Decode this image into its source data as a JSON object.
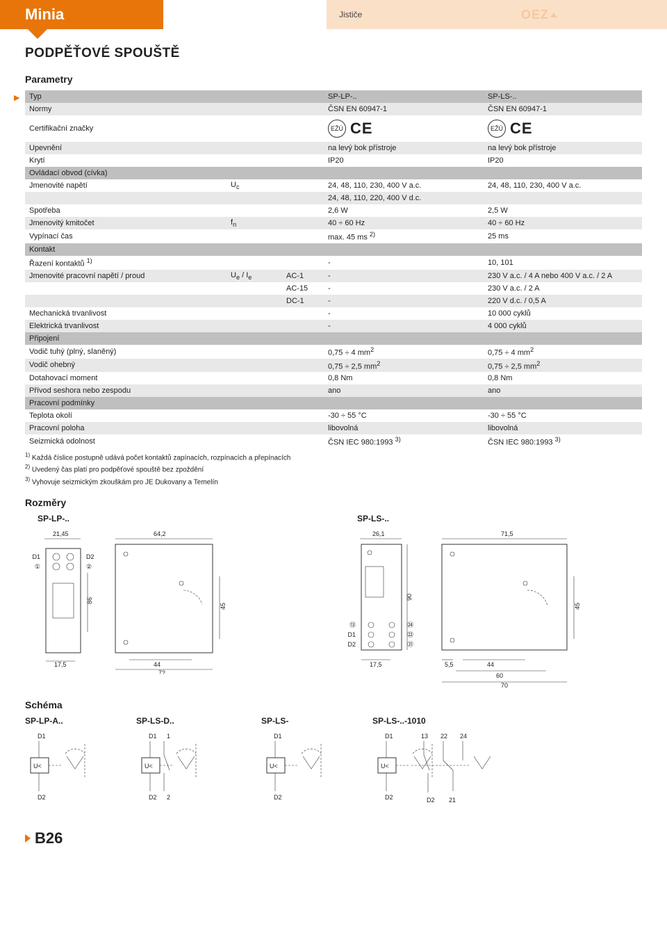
{
  "header": {
    "category": "Minia",
    "subcategory": "Jističe",
    "brand": "OEZ"
  },
  "title": "PODPĚŤOVÉ SPOUŠTĚ",
  "section_params": "Parametry",
  "section_dims": "Rozměry",
  "section_schema": "Schéma",
  "page_number": "B26",
  "table": {
    "rows": [
      {
        "style": "dark",
        "c1": "Typ",
        "c2": "",
        "c3": "",
        "c4": "SP-LP-..",
        "c5": "SP-LS-.."
      },
      {
        "style": "light",
        "c1": "Normy",
        "c2": "",
        "c3": "",
        "c4": "ČSN EN 60947-1",
        "c5": "ČSN EN 60947-1"
      },
      {
        "style": "white",
        "c1": "Certifikační značky",
        "c2": "",
        "c3": "",
        "c4": "__CE__",
        "c5": "__CE__",
        "class": "cert"
      },
      {
        "style": "light",
        "c1": "Upevnění",
        "c2": "",
        "c3": "",
        "c4": "na levý bok přístroje",
        "c5": "na levý bok přístroje"
      },
      {
        "style": "white",
        "c1": "Krytí",
        "c2": "",
        "c3": "",
        "c4": "IP20",
        "c5": "IP20"
      },
      {
        "style": "dark",
        "c1": "Ovládací obvod (cívka)",
        "c2": "",
        "c3": "",
        "c4": "",
        "c5": ""
      },
      {
        "style": "white",
        "c1": "Jmenovité napětí",
        "c2": "Uc",
        "c3": "",
        "c4": "24, 48, 110, 230, 400 V a.c.",
        "c5": "24, 48, 110, 230, 400 V a.c."
      },
      {
        "style": "light",
        "c1": "",
        "c2": "",
        "c3": "",
        "c4": "24, 48, 110, 220, 400 V d.c.",
        "c5": ""
      },
      {
        "style": "white",
        "c1": "Spotřeba",
        "c2": "",
        "c3": "",
        "c4": "2,6 W",
        "c5": "2,5 W"
      },
      {
        "style": "light",
        "c1": "Jmenovitý kmitočet",
        "c2": "fn",
        "c3": "",
        "c4": "40 ÷ 60 Hz",
        "c5": "40 ÷ 60 Hz"
      },
      {
        "style": "white",
        "c1": "Vypínací čas",
        "c2": "",
        "c3": "",
        "c4": "max. 45 ms  2)",
        "c5": "25 ms"
      },
      {
        "style": "dark",
        "c1": "Kontakt",
        "c2": "",
        "c3": "",
        "c4": "",
        "c5": ""
      },
      {
        "style": "white",
        "c1": "Řazení kontaktů 1)",
        "c2": "",
        "c3": "",
        "c4": "-",
        "c5": "10, 101"
      },
      {
        "style": "light",
        "c1": "Jmenovité pracovní napětí / proud",
        "c2": "Ue / Ie",
        "c3": "AC-1",
        "c4": "-",
        "c5": "230 V a.c. / 4 A nebo 400 V a.c. / 2 A"
      },
      {
        "style": "white",
        "c1": "",
        "c2": "",
        "c3": "AC-15",
        "c4": "-",
        "c5": "230 V a.c. / 2 A"
      },
      {
        "style": "light",
        "c1": "",
        "c2": "",
        "c3": "DC-1",
        "c4": "-",
        "c5": "220 V d.c. / 0,5 A"
      },
      {
        "style": "white",
        "c1": "Mechanická trvanlivost",
        "c2": "",
        "c3": "",
        "c4": "-",
        "c5": "10 000 cyklů"
      },
      {
        "style": "light",
        "c1": "Elektrická trvanlivost",
        "c2": "",
        "c3": "",
        "c4": "-",
        "c5": "4 000 cyklů"
      },
      {
        "style": "dark",
        "c1": "Připojení",
        "c2": "",
        "c3": "",
        "c4": "",
        "c5": ""
      },
      {
        "style": "white",
        "c1": "Vodič tuhý (plný, slaněný)",
        "c2": "",
        "c3": "",
        "c4": "0,75 ÷ 4 mm2",
        "c5": "0,75 ÷ 4 mm2"
      },
      {
        "style": "light",
        "c1": "Vodič ohebný",
        "c2": "",
        "c3": "",
        "c4": "0,75 ÷ 2,5 mm2",
        "c5": "0,75 ÷ 2,5 mm2"
      },
      {
        "style": "white",
        "c1": "Dotahovací moment",
        "c2": "",
        "c3": "",
        "c4": "0,8 Nm",
        "c5": "0,8 Nm"
      },
      {
        "style": "light",
        "c1": "Přívod seshora nebo zespodu",
        "c2": "",
        "c3": "",
        "c4": "ano",
        "c5": "ano"
      },
      {
        "style": "dark",
        "c1": "Pracovní podmínky",
        "c2": "",
        "c3": "",
        "c4": "",
        "c5": ""
      },
      {
        "style": "white",
        "c1": "Teplota okolí",
        "c2": "",
        "c3": "",
        "c4": "-30 ÷ 55 °C",
        "c5": "-30 ÷ 55 °C"
      },
      {
        "style": "light",
        "c1": "Pracovní poloha",
        "c2": "",
        "c3": "",
        "c4": "libovolná",
        "c5": "libovolná"
      },
      {
        "style": "white",
        "c1": "Seizmická odolnost",
        "c2": "",
        "c3": "",
        "c4": "ČSN IEC 980:1993  3)",
        "c5": "ČSN IEC 980:1993  3)"
      }
    ]
  },
  "footnotes": [
    "1)  Každá číslice postupně udává počet kontaktů zapínacích, rozpínacích a přepínacích",
    "2)  Uvedený čas platí pro podpěťové spouště bez zpoždění",
    "3)  Vyhovuje seizmickým zkouškám pro JE Dukovany a Temelín"
  ],
  "dims": {
    "lp_label": "SP-LP-..",
    "ls_label": "SP-LS-..",
    "lp_front": {
      "w": "21,45",
      "h": "86",
      "bottom": "17,5",
      "terms": [
        "D1",
        "D2",
        "1",
        "2"
      ]
    },
    "lp_side": {
      "top": "64,2",
      "w": "44",
      "w2": "72",
      "h": "45"
    },
    "ls_front": {
      "w": "26,1",
      "bottom": "17,5",
      "h": "90",
      "terms": [
        "13",
        "24",
        "D1",
        "22",
        "D2",
        "21"
      ]
    },
    "ls_side": {
      "top": "71,5",
      "w": "44",
      "w2": "60",
      "w3": "70",
      "left": "5,5",
      "h": "45"
    }
  },
  "schemas": [
    {
      "label": "SP-LP-A..",
      "t1": "D1",
      "t2": "D2"
    },
    {
      "label": "SP-LS-D..",
      "t1": "D1",
      "t1b": "1",
      "t2": "D2",
      "t2b": "2",
      "sw": true
    },
    {
      "label": "SP-LS-",
      "t1": "D1",
      "t2": "D2"
    },
    {
      "label": "SP-LS-..-1010",
      "t1": "D1",
      "t1b": "13",
      "t1c": "22",
      "t1d": "24",
      "t2": "D2",
      "t2b": "21",
      "multi": true
    }
  ],
  "colors": {
    "orange": "#e8750a",
    "peach": "#fbe0c8",
    "dark": "#bfbfbf",
    "light": "#e8e8e8"
  }
}
